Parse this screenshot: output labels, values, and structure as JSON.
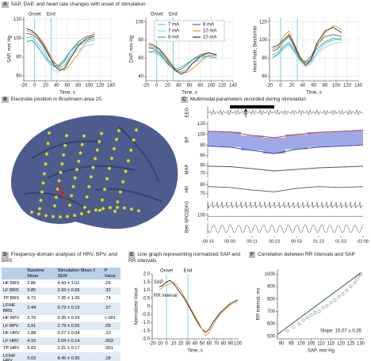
{
  "panels": {
    "a": {
      "letter": "A",
      "title": "SAP, DAP, and heart rate changes with onset of stimulation"
    },
    "b": {
      "letter": "B",
      "title": "Electrode position in Brodmann area 25"
    },
    "c": {
      "letter": "C",
      "title": "Multimodal parameters recorded during stimulation"
    },
    "d": {
      "letter": "D",
      "title": "Frequency-domain analyses of HRV, BPV, and BRS"
    },
    "e": {
      "letter": "E",
      "title": "Line graph representing normalized SAP and RR intervals"
    },
    "f": {
      "letter": "F",
      "title": "Correlation between RR intervals and SAP"
    }
  },
  "table": {
    "header": [
      "Baseline Mean",
      "Stimulation Mean ± SEM",
      "P Value"
    ],
    "rows": [
      [
        "HF BRS",
        "2.86",
        "4.43 ± 1.01",
        ".29"
      ],
      [
        "LF BRS",
        "3.85",
        "2.93 ± 0.65",
        ".33"
      ],
      [
        "TP BRS",
        "6.72",
        "7.35 ± 1.26",
        ".74"
      ],
      [
        "LF/HF BRS",
        "2.44",
        "0.79 ± 0.19",
        ".27"
      ],
      [
        "HF BPV",
        "2.76",
        "0.35 ± 0.29",
        "<.001"
      ],
      [
        "LF BPV",
        "3.91",
        "2.79 ± 0.55",
        ".09"
      ],
      [
        "HF HRV",
        "1.88",
        "0.27 ± 0.04",
        ".10"
      ],
      [
        "LF HRV",
        "4.15",
        "2.04 ± 0.14",
        ".003"
      ],
      [
        "TP HRV",
        "6.03",
        "2.31 ± 0.17",
        ".001"
      ],
      [
        "LF/HF HRV",
        "5.03",
        "8.45 ± 0.95",
        ".18"
      ]
    ]
  },
  "chart_data": [
    {
      "type": "line",
      "ylabel": "SAP, mm Hg",
      "xlabel": "Time, s",
      "x": [
        -15,
        -5,
        5,
        15,
        25,
        35,
        45,
        55,
        65,
        80,
        95,
        110
      ],
      "xlim": [
        -20,
        140
      ],
      "xticks": [
        -20,
        0,
        20,
        40,
        60,
        80,
        100,
        120,
        140
      ],
      "ylim": [
        55,
        122
      ],
      "yticks": [
        60,
        80,
        100,
        120
      ],
      "grid": true,
      "marker_color": "#5bc8e0",
      "markers": [
        {
          "x": 0,
          "label": "Onset"
        },
        {
          "x": 30,
          "label": "End"
        }
      ],
      "series": [
        {
          "color": "#5bc8e0",
          "values": [
            100,
            102,
            95,
            88,
            78,
            70,
            68,
            72,
            82,
            92,
            96,
            98
          ]
        },
        {
          "color": "#666666",
          "values": [
            105,
            104,
            100,
            92,
            82,
            74,
            70,
            76,
            86,
            96,
            102,
            104
          ]
        },
        {
          "color": "#9fd0e8",
          "values": [
            98,
            97,
            90,
            82,
            74,
            66,
            64,
            70,
            80,
            88,
            92,
            94
          ]
        },
        {
          "color": "#e8922a",
          "values": [
            108,
            106,
            104,
            96,
            86,
            76,
            68,
            66,
            72,
            84,
            96,
            106
          ]
        },
        {
          "color": "#3aa5a0",
          "values": [
            96,
            98,
            92,
            84,
            76,
            70,
            72,
            78,
            86,
            94,
            98,
            100
          ]
        },
        {
          "color": "#333333",
          "values": [
            110,
            108,
            102,
            94,
            84,
            72,
            66,
            68,
            78,
            92,
            100,
            102
          ]
        }
      ]
    },
    {
      "type": "line",
      "ylabel": "DAP, mm Hg",
      "xlabel": "Time, s",
      "x": [
        -15,
        -5,
        5,
        15,
        25,
        35,
        45,
        55,
        65,
        80,
        95,
        110
      ],
      "xlim": [
        -20,
        140
      ],
      "xticks": [
        -20,
        0,
        20,
        40,
        60,
        80,
        100,
        120,
        140
      ],
      "ylim": [
        35,
        105
      ],
      "yticks": [
        40,
        60,
        80,
        100
      ],
      "grid": true,
      "legend": "top",
      "marker_color": "#5bc8e0",
      "markers": [
        {
          "x": 0,
          "label": "Onset"
        },
        {
          "x": 30,
          "label": "End"
        }
      ],
      "series": [
        {
          "name": "7 mA",
          "color": "#5bc8e0",
          "values": [
            70,
            72,
            68,
            60,
            52,
            46,
            45,
            48,
            54,
            60,
            62,
            64
          ]
        },
        {
          "name": "8 mA",
          "color": "#666666",
          "values": [
            72,
            70,
            66,
            58,
            50,
            46,
            48,
            52,
            58,
            64,
            66,
            64
          ]
        },
        {
          "name": "7 mA",
          "color": "#9fd0e8",
          "values": [
            68,
            66,
            62,
            56,
            50,
            45,
            44,
            48,
            54,
            58,
            60,
            60
          ]
        },
        {
          "name": "10 mA",
          "color": "#e8922a",
          "values": [
            74,
            72,
            70,
            64,
            56,
            48,
            44,
            44,
            48,
            56,
            64,
            62
          ]
        },
        {
          "name": "8 mA",
          "color": "#3aa5a0",
          "values": [
            66,
            68,
            64,
            58,
            52,
            48,
            50,
            54,
            58,
            62,
            62,
            60
          ]
        },
        {
          "name": "10 mA",
          "color": "#333333",
          "values": [
            76,
            74,
            70,
            62,
            54,
            46,
            42,
            46,
            54,
            62,
            66,
            64
          ]
        }
      ]
    },
    {
      "type": "line",
      "ylabel": "Heart Rate, Beats/min",
      "xlabel": "Time, s",
      "x": [
        -15,
        -5,
        5,
        15,
        25,
        35,
        45,
        55,
        65,
        80,
        95,
        110
      ],
      "xlim": [
        -20,
        140
      ],
      "xticks": [
        -20,
        0,
        20,
        40,
        60,
        80,
        100,
        120,
        140
      ],
      "ylim": [
        55,
        125
      ],
      "yticks": [
        60,
        80,
        100,
        120
      ],
      "grid": true,
      "marker_color": "#5bc8e0",
      "markers": [
        {
          "x": 0
        },
        {
          "x": 30
        }
      ],
      "series": [
        {
          "color": "#5bc8e0",
          "values": [
            84,
            86,
            94,
            98,
            90,
            78,
            72,
            76,
            86,
            96,
            100,
            102
          ]
        },
        {
          "color": "#666666",
          "values": [
            88,
            90,
            98,
            104,
            92,
            80,
            76,
            82,
            94,
            104,
            106,
            104
          ]
        },
        {
          "color": "#9fd0e8",
          "values": [
            82,
            84,
            90,
            94,
            86,
            76,
            70,
            74,
            84,
            92,
            96,
            98
          ]
        },
        {
          "color": "#e8922a",
          "values": [
            90,
            92,
            104,
            110,
            96,
            82,
            74,
            78,
            92,
            108,
            116,
            112
          ]
        },
        {
          "color": "#3aa5a0",
          "values": [
            80,
            84,
            92,
            96,
            88,
            78,
            74,
            80,
            90,
            98,
            102,
            100
          ]
        },
        {
          "color": "#333333",
          "values": [
            92,
            94,
            100,
            106,
            94,
            80,
            72,
            78,
            96,
            110,
            114,
            108
          ]
        }
      ]
    },
    {
      "type": "multichannel",
      "time_labels": [
        "-00:15",
        "00:00",
        "00:11",
        "00:23",
        "00:53",
        "01:23",
        "01:53",
        "02:08"
      ],
      "channels": [
        {
          "label": "EEG"
        },
        {
          "label": "BP",
          "ylim": [
            55,
            125
          ],
          "yticks": [
            60,
            80,
            100,
            120
          ],
          "series": [
            {
              "color": "#c0392b",
              "values": [
                106,
                105,
                98,
                94,
                100,
                104,
                106,
                108
              ]
            },
            {
              "color": "#2d3fb0",
              "values": [
                78,
                76,
                70,
                64,
                72,
                76,
                78,
                80
              ]
            }
          ]
        },
        {
          "label": "MAP",
          "ylim": [
            60,
            100
          ],
          "yticks": [
            70,
            90
          ],
          "series": [
            {
              "color": "#555555",
              "values": [
                88,
                87,
                82,
                76,
                80,
                84,
                86,
                88
              ]
            }
          ]
        },
        {
          "label": "HR",
          "ylim": [
            65,
            85
          ],
          "yticks": [
            70,
            80
          ],
          "series": [
            {
              "color": "#555555",
              "values": [
                78,
                77,
                74,
                72,
                76,
                78,
                77,
                78
              ]
            }
          ]
        },
        {
          "label": "EKG"
        },
        {
          "label": "SPO2",
          "ylim": [
            95,
            102
          ],
          "yticks": [
            100
          ],
          "series": [
            {
              "color": "#7a9a7a",
              "values": [
                99,
                99,
                99,
                99,
                99,
                99,
                99,
                99
              ]
            }
          ]
        },
        {
          "label": "Belt"
        }
      ]
    },
    {
      "type": "line",
      "ylabel": "Normalized Value",
      "xlabel": "Time, s",
      "legend": "inline",
      "x": [
        -10,
        -5,
        0,
        5,
        10,
        15,
        20,
        25,
        30,
        35,
        40,
        45,
        50,
        55,
        60,
        65,
        70,
        75,
        80,
        85,
        90,
        95,
        100
      ],
      "xlim": [
        -20,
        100
      ],
      "xticks": [
        -20,
        -10,
        0,
        10,
        20,
        30,
        40,
        50,
        60,
        70,
        80,
        90,
        100
      ],
      "ylim": [
        -2,
        2
      ],
      "yticks": [
        {
          "value": -2,
          "label": "-2.0"
        },
        {
          "value": -1.5,
          "label": "-1.5"
        },
        {
          "value": -1,
          "label": "-1.0"
        },
        -0.5,
        0,
        0.5,
        {
          "value": 1,
          "label": "1.0"
        },
        1.5,
        {
          "value": 2,
          "label": "2.0"
        }
      ],
      "marker_color": "#5bc8e0",
      "markers": [
        {
          "x": 0,
          "label": "Onset"
        },
        {
          "x": 30,
          "label": "End"
        }
      ],
      "series": [
        {
          "name": "SAP",
          "color": "#222222",
          "values": [
            1.2,
            1.3,
            1.5,
            1.6,
            1.4,
            1.1,
            0.8,
            0.5,
            0.1,
            -0.3,
            -0.7,
            -1.1,
            -1.4,
            -1.6,
            -1.4,
            -1.0,
            -0.7,
            -0.4,
            -0.2,
            0,
            0.2,
            0.3,
            0.4
          ]
        },
        {
          "name": "RR interval",
          "color": "#e8922a",
          "values": [
            1.0,
            1.2,
            1.3,
            1.4,
            1.5,
            1.3,
            1.0,
            0.6,
            0.2,
            -0.2,
            -0.6,
            -1.0,
            -1.4,
            -1.8,
            -1.6,
            -1.2,
            -0.8,
            -0.5,
            -0.3,
            -0.1,
            0.1,
            0.2,
            0.3
          ]
        }
      ]
    },
    {
      "type": "scatter",
      "xlabel": "SAP, mm Hg",
      "ylabel": "RR interval, ms",
      "color": "#888888",
      "x": [
        93,
        96,
        99,
        101,
        103,
        105,
        107,
        109,
        111,
        113,
        115,
        117,
        119,
        121,
        123,
        125,
        127,
        128,
        129,
        130
      ],
      "values": [
        545,
        575,
        600,
        630,
        650,
        670,
        690,
        700,
        730,
        745,
        770,
        790,
        820,
        840,
        870,
        900,
        930,
        960,
        990,
        1000
      ],
      "xlim": [
        88,
        132
      ],
      "xticks": [
        90,
        95,
        100,
        105,
        110,
        115,
        120,
        125,
        130
      ],
      "ylim": [
        480,
        1040
      ],
      "yticks": [
        500,
        600,
        700,
        800,
        900,
        1000
      ],
      "fit": {
        "color": "#2c5f3a",
        "x": [
          88,
          130
        ],
        "y": [
          515,
          1010
        ]
      },
      "annotation": "Slope: 15.07 ± 0.35"
    }
  ]
}
